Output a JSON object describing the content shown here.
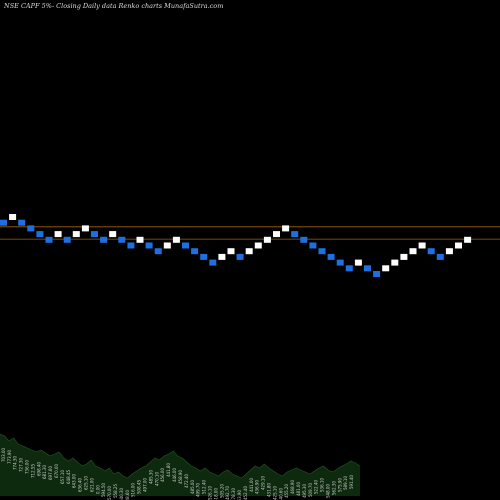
{
  "header": {
    "title": "NSE CAPF 5%-  Closing Daily data  Renko  charts MunafaSutra.com"
  },
  "colors": {
    "background": "#000000",
    "up_brick": "#ffffff",
    "down_brick": "#1e6fe0",
    "level_line": "#a0620f",
    "volume_fill": "#0e2a0e"
  },
  "chart_data": {
    "type": "renko",
    "brick_change_pct": 5,
    "reference_lines": [
      712.5,
      678.0
    ],
    "bricks": [
      {
        "dir": "down",
        "price": 724
      },
      {
        "dir": "up",
        "price": 740
      },
      {
        "dir": "down",
        "price": 724
      },
      {
        "dir": "down",
        "price": 708
      },
      {
        "dir": "down",
        "price": 692
      },
      {
        "dir": "down",
        "price": 676
      },
      {
        "dir": "up",
        "price": 692
      },
      {
        "dir": "down",
        "price": 676
      },
      {
        "dir": "up",
        "price": 692
      },
      {
        "dir": "up",
        "price": 708
      },
      {
        "dir": "down",
        "price": 692
      },
      {
        "dir": "down",
        "price": 676
      },
      {
        "dir": "up",
        "price": 692
      },
      {
        "dir": "down",
        "price": 676
      },
      {
        "dir": "down",
        "price": 660
      },
      {
        "dir": "up",
        "price": 676
      },
      {
        "dir": "down",
        "price": 660
      },
      {
        "dir": "down",
        "price": 644
      },
      {
        "dir": "up",
        "price": 660
      },
      {
        "dir": "up",
        "price": 676
      },
      {
        "dir": "down",
        "price": 660
      },
      {
        "dir": "down",
        "price": 644
      },
      {
        "dir": "down",
        "price": 628
      },
      {
        "dir": "down",
        "price": 612
      },
      {
        "dir": "up",
        "price": 628
      },
      {
        "dir": "up",
        "price": 644
      },
      {
        "dir": "down",
        "price": 628
      },
      {
        "dir": "up",
        "price": 644
      },
      {
        "dir": "up",
        "price": 660
      },
      {
        "dir": "up",
        "price": 676
      },
      {
        "dir": "up",
        "price": 692
      },
      {
        "dir": "up",
        "price": 708
      },
      {
        "dir": "down",
        "price": 692
      },
      {
        "dir": "down",
        "price": 676
      },
      {
        "dir": "down",
        "price": 660
      },
      {
        "dir": "down",
        "price": 644
      },
      {
        "dir": "down",
        "price": 628
      },
      {
        "dir": "down",
        "price": 612
      },
      {
        "dir": "down",
        "price": 596
      },
      {
        "dir": "up",
        "price": 612
      },
      {
        "dir": "down",
        "price": 596
      },
      {
        "dir": "down",
        "price": 580
      },
      {
        "dir": "up",
        "price": 596
      },
      {
        "dir": "up",
        "price": 612
      },
      {
        "dir": "up",
        "price": 628
      },
      {
        "dir": "up",
        "price": 644
      },
      {
        "dir": "up",
        "price": 660
      },
      {
        "dir": "down",
        "price": 644
      },
      {
        "dir": "down",
        "price": 628
      },
      {
        "dir": "up",
        "price": 644
      },
      {
        "dir": "up",
        "price": 660
      },
      {
        "dir": "up",
        "price": 676
      }
    ],
    "volume_profile": [
      62,
      60,
      55,
      58,
      52,
      50,
      48,
      46,
      44,
      46,
      43,
      40,
      42,
      44,
      38,
      35,
      38,
      34,
      30,
      32,
      36,
      30,
      28,
      25,
      28,
      22,
      24,
      20,
      18,
      22,
      25,
      28,
      30,
      34,
      38,
      36,
      40,
      42,
      45,
      40,
      38,
      34,
      30,
      28,
      25,
      28,
      24,
      22,
      20,
      24,
      26,
      22,
      20,
      18,
      22,
      26,
      30,
      28,
      32,
      28,
      25,
      22,
      20,
      24,
      26,
      28,
      26,
      24,
      22,
      25,
      28,
      30,
      26,
      24,
      27,
      30,
      32,
      35,
      33,
      30
    ],
    "volume_labels": [
      {
        "i": 1,
        "text": "703.00"
      },
      {
        "i": 2,
        "text": "773.90"
      },
      {
        "i": 3,
        "text": "774.30"
      },
      {
        "i": 4,
        "text": "727.30"
      },
      {
        "i": 5,
        "text": "736.00"
      },
      {
        "i": 6,
        "text": "712.55"
      },
      {
        "i": 7,
        "text": "698.40"
      },
      {
        "i": 8,
        "text": "681.30"
      },
      {
        "i": 9,
        "text": "697.60"
      },
      {
        "i": 10,
        "text": "670.00"
      },
      {
        "i": 11,
        "text": "657.10"
      },
      {
        "i": 12,
        "text": "648.45"
      },
      {
        "i": 13,
        "text": "643.00"
      },
      {
        "i": 14,
        "text": "636.40"
      },
      {
        "i": 15,
        "text": "625.10"
      },
      {
        "i": 16,
        "text": "621.00"
      },
      {
        "i": 17,
        "text": "0.00"
      },
      {
        "i": 18,
        "text": "594.50"
      },
      {
        "i": 19,
        "text": "570.00"
      },
      {
        "i": 20,
        "text": "558.25"
      },
      {
        "i": 21,
        "text": "540.30"
      },
      {
        "i": 22,
        "text": "528.60"
      },
      {
        "i": 23,
        "text": "516.00"
      },
      {
        "i": 24,
        "text": "508.45"
      },
      {
        "i": 25,
        "text": "497.00"
      },
      {
        "i": 26,
        "text": "485.30"
      },
      {
        "i": 27,
        "text": "470.10"
      },
      {
        "i": 28,
        "text": "456.00"
      },
      {
        "i": 29,
        "text": "441.80"
      },
      {
        "i": 30,
        "text": "446.00"
      },
      {
        "i": 31,
        "text": "458.90"
      },
      {
        "i": 32,
        "text": "472.40"
      },
      {
        "i": 33,
        "text": "485.00"
      },
      {
        "i": 34,
        "text": "499.70"
      },
      {
        "i": 35,
        "text": "512.40"
      },
      {
        "i": 36,
        "text": "526.10"
      },
      {
        "i": 37,
        "text": "518.00"
      },
      {
        "i": 38,
        "text": "505.20"
      },
      {
        "i": 39,
        "text": "492.70"
      },
      {
        "i": 40,
        "text": "478.30"
      },
      {
        "i": 41,
        "text": "463.90"
      },
      {
        "i": 42,
        "text": "452.40"
      },
      {
        "i": 43,
        "text": "441.00"
      },
      {
        "i": 44,
        "text": "436.90"
      },
      {
        "i": 45,
        "text": "429.10"
      },
      {
        "i": 46,
        "text": "431.80"
      },
      {
        "i": 47,
        "text": "425.10"
      },
      {
        "i": 48,
        "text": "440.60"
      },
      {
        "i": 49,
        "text": "455.20"
      },
      {
        "i": 50,
        "text": "468.90"
      },
      {
        "i": 51,
        "text": "481.00"
      },
      {
        "i": 52,
        "text": "495.30"
      },
      {
        "i": 53,
        "text": "509.70"
      },
      {
        "i": 54,
        "text": "522.40"
      },
      {
        "i": 55,
        "text": "536.10"
      },
      {
        "i": 56,
        "text": "548.00"
      },
      {
        "i": 57,
        "text": "562.30"
      },
      {
        "i": 58,
        "text": "575.90"
      },
      {
        "i": 59,
        "text": "589.10"
      },
      {
        "i": 60,
        "text": "591.40"
      }
    ]
  }
}
